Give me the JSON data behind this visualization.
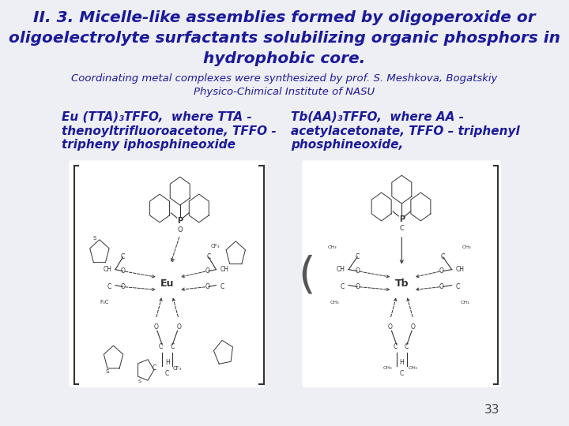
{
  "title_line1": "II. 3. Micelle-like assemblies formed by oligoperoxide or",
  "title_line2": "oligoelectrolyte surfactants solubilizing organic phosphors in",
  "title_line3": "hydrophobic core.",
  "subtitle_line1": "Coordinating metal complexes were synthesized by prof. S. Meshkova, Bogatskiy",
  "subtitle_line2": "Physico-Chimical Institute of NASU",
  "left_label_line1": "Eu (TTA)₃TFFO,  where TTA -",
  "left_label_line2": "thenoyltrifluoroacetone, TFFO -",
  "left_label_line3": "tripheny iphosphineoxide",
  "right_label_line1": "Tb(AA)₃TFFO,  where AA -",
  "right_label_line2": "acetylacetonate, TFFO – triphenyl",
  "right_label_line3": "phosphineoxide,",
  "page_number": "33",
  "title_color": "#1a1a9a",
  "subtitle_color": "#1a1a9a",
  "label_color": "#1a1a9a",
  "bg_color": "#EEEEF5",
  "struct_color": "#333333",
  "title_fontsize": 14.5,
  "subtitle_fontsize": 9.5,
  "label_fontsize": 11,
  "page_fontsize": 11
}
